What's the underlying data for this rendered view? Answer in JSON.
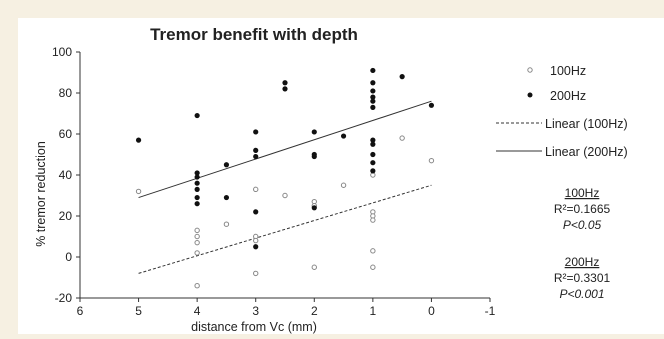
{
  "chart_data": {
    "type": "scatter",
    "title": "Tremor benefit with depth",
    "xlabel": "distance from Vc (mm)",
    "ylabel": "% tremor reduction",
    "xlim": [
      6,
      -1
    ],
    "ylim": [
      -20,
      100
    ],
    "x_ticks": [
      6,
      5,
      4,
      3,
      2,
      1,
      0,
      -1
    ],
    "y_ticks": [
      -20,
      0,
      20,
      40,
      60,
      80,
      100
    ],
    "x_reversed": true,
    "grid": false,
    "legend_position": "right",
    "series": [
      {
        "name": "100Hz",
        "marker": "open-circle",
        "color": "#888888",
        "points": [
          [
            5,
            32
          ],
          [
            4,
            13
          ],
          [
            4,
            10
          ],
          [
            4,
            7
          ],
          [
            4,
            2
          ],
          [
            4,
            -14
          ],
          [
            3.5,
            16
          ],
          [
            3,
            33
          ],
          [
            3,
            10
          ],
          [
            3,
            8
          ],
          [
            3,
            -8
          ],
          [
            2.5,
            30
          ],
          [
            2,
            27
          ],
          [
            2,
            25
          ],
          [
            2,
            -5
          ],
          [
            1.5,
            35
          ],
          [
            1,
            40
          ],
          [
            1,
            22
          ],
          [
            1,
            20
          ],
          [
            1,
            18
          ],
          [
            1,
            3
          ],
          [
            1,
            -5
          ],
          [
            0.5,
            58
          ],
          [
            0,
            47
          ]
        ]
      },
      {
        "name": "200Hz",
        "marker": "filled-circle",
        "color": "#111111",
        "points": [
          [
            5,
            57
          ],
          [
            4,
            69
          ],
          [
            4,
            41
          ],
          [
            4,
            39
          ],
          [
            4,
            36
          ],
          [
            4,
            33
          ],
          [
            4,
            29
          ],
          [
            4,
            26
          ],
          [
            3.5,
            45
          ],
          [
            3.5,
            29
          ],
          [
            3,
            61
          ],
          [
            3,
            52
          ],
          [
            3,
            49
          ],
          [
            3,
            22
          ],
          [
            3,
            5
          ],
          [
            2.5,
            85
          ],
          [
            2.5,
            82
          ],
          [
            2,
            61
          ],
          [
            2,
            50
          ],
          [
            2,
            49
          ],
          [
            2,
            24
          ],
          [
            1.5,
            59
          ],
          [
            1,
            91
          ],
          [
            1,
            85
          ],
          [
            1,
            81
          ],
          [
            1,
            78
          ],
          [
            1,
            76
          ],
          [
            1,
            73
          ],
          [
            1,
            57
          ],
          [
            1,
            55
          ],
          [
            1,
            50
          ],
          [
            1,
            46
          ],
          [
            1,
            42
          ],
          [
            0.5,
            88
          ],
          [
            0,
            74
          ]
        ]
      }
    ],
    "trendlines": [
      {
        "name": "Linear (100Hz)",
        "style": "dashed",
        "from": [
          5,
          -8
        ],
        "to": [
          0,
          35
        ]
      },
      {
        "name": "Linear (200Hz)",
        "style": "solid",
        "from": [
          5,
          29
        ],
        "to": [
          0,
          76
        ]
      }
    ],
    "stats": [
      {
        "label": "100Hz",
        "r2": "R²=0.1665",
        "p": "P<0.05"
      },
      {
        "label": "200Hz",
        "r2": "R²=0.3301",
        "p": "P<0.001"
      }
    ]
  }
}
